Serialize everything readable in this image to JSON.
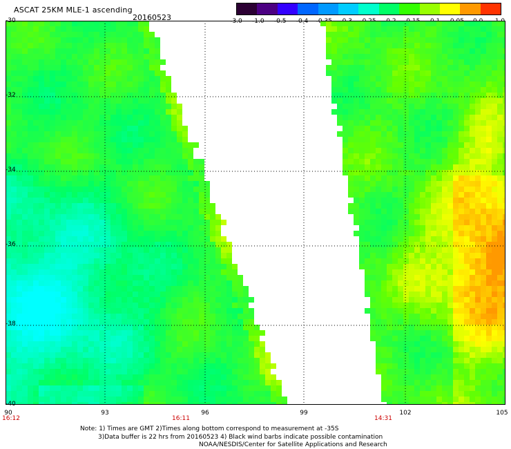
{
  "header": {
    "title": "ASCAT 25KM MLE-1 ascending",
    "date": "20160523"
  },
  "colorbar": {
    "ticks": [
      "-3.0",
      "-1.0",
      "-0.5",
      "-0.4",
      "-0.35",
      "-0.3",
      "-0.25",
      "-0.2",
      "-0.15",
      "-0.1",
      "-0.05",
      "0.0",
      "1.0"
    ],
    "colors": [
      "#2b0033",
      "#4b0082",
      "#3300ff",
      "#0066ff",
      "#0099ff",
      "#00ccff",
      "#00ffcc",
      "#00ff66",
      "#33ff00",
      "#99ff00",
      "#ffff00",
      "#ff9900",
      "#ff3300"
    ]
  },
  "map": {
    "lat_labels": [
      "-30",
      "-32",
      "-34",
      "-36",
      "-38",
      "-40"
    ],
    "lon_labels": [
      "90",
      "93",
      "96",
      "99",
      "102",
      "105"
    ],
    "time_labels": [
      "16:12",
      "16:11",
      "14:31"
    ]
  },
  "notes": {
    "line1": "Note: 1) Times are GMT 2)Times along bottom correspond to measurement at -35S",
    "line2": "3)Data buffer is 22 hrs from 20160523 4) Black wind barbs indicate possible contamination",
    "line3": "NOAA/NESDIS/Center for Satellite Applications and Research"
  }
}
